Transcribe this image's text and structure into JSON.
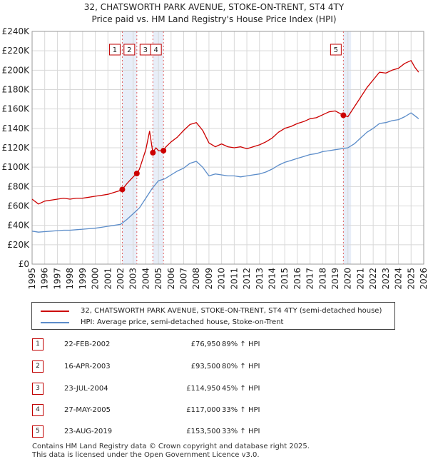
{
  "chart_data": {
    "type": "line",
    "title": "32, CHATSWORTH PARK AVENUE, STOKE-ON-TRENT, ST4 4TY",
    "subtitle": "Price paid vs. HM Land Registry's House Price Index (HPI)",
    "xlabel": "",
    "ylabel": "",
    "xlim": [
      1995,
      2026
    ],
    "ylim": [
      0,
      240000
    ],
    "x_ticks": [
      1995,
      1996,
      1997,
      1998,
      1999,
      2000,
      2001,
      2002,
      2003,
      2004,
      2005,
      2006,
      2007,
      2008,
      2009,
      2010,
      2011,
      2012,
      2013,
      2014,
      2015,
      2016,
      2017,
      2018,
      2019,
      2020,
      2021,
      2022,
      2023,
      2024,
      2025,
      2026
    ],
    "y_ticks": [
      {
        "value": 0,
        "label": "£0"
      },
      {
        "value": 20000,
        "label": "£20K"
      },
      {
        "value": 40000,
        "label": "£40K"
      },
      {
        "value": 60000,
        "label": "£60K"
      },
      {
        "value": 80000,
        "label": "£80K"
      },
      {
        "value": 100000,
        "label": "£100K"
      },
      {
        "value": 120000,
        "label": "£120K"
      },
      {
        "value": 140000,
        "label": "£140K"
      },
      {
        "value": 160000,
        "label": "£160K"
      },
      {
        "value": 180000,
        "label": "£180K"
      },
      {
        "value": 200000,
        "label": "£200K"
      },
      {
        "value": 220000,
        "label": "£220K"
      },
      {
        "value": 240000,
        "label": "£240K"
      }
    ],
    "grid": true,
    "series": [
      {
        "name": "32, CHATSWORTH PARK AVENUE, STOKE-ON-TRENT, ST4 4TY (semi-detached house)",
        "color": "#cc0000",
        "x": [
          1995.0,
          1995.5,
          1996.0,
          1996.5,
          1997.0,
          1997.5,
          1998.0,
          1998.5,
          1999.0,
          1999.5,
          2000.0,
          2000.5,
          2001.0,
          2001.5,
          2002.0,
          2002.14,
          2002.5,
          2003.0,
          2003.29,
          2003.5,
          2004.0,
          2004.3,
          2004.56,
          2004.8,
          2005.0,
          2005.4,
          2005.6,
          2006.0,
          2006.5,
          2007.0,
          2007.5,
          2008.0,
          2008.5,
          2009.0,
          2009.5,
          2010.0,
          2010.5,
          2011.0,
          2011.5,
          2012.0,
          2012.5,
          2013.0,
          2013.5,
          2014.0,
          2014.5,
          2015.0,
          2015.5,
          2016.0,
          2016.5,
          2017.0,
          2017.5,
          2018.0,
          2018.5,
          2019.0,
          2019.64,
          2020.0,
          2020.5,
          2021.0,
          2021.5,
          2022.0,
          2022.5,
          2023.0,
          2023.5,
          2024.0,
          2024.5,
          2025.0,
          2025.3,
          2025.6
        ],
        "values": [
          67000,
          62000,
          65000,
          66000,
          67000,
          68000,
          67000,
          68000,
          68000,
          69000,
          70000,
          71000,
          72000,
          74000,
          76000,
          76950,
          83000,
          90000,
          93500,
          98000,
          118000,
          137000,
          114950,
          120000,
          117000,
          117000,
          121000,
          126000,
          131000,
          138000,
          144000,
          146000,
          138000,
          125000,
          121000,
          124000,
          121000,
          120000,
          121000,
          119000,
          121000,
          123000,
          126000,
          130000,
          136000,
          140000,
          142000,
          145000,
          147000,
          150000,
          151000,
          154000,
          157000,
          158000,
          153500,
          152000,
          162000,
          172000,
          182000,
          190000,
          198000,
          197000,
          200000,
          202000,
          207000,
          210000,
          203000,
          198000
        ]
      },
      {
        "name": "HPI: Average price, semi-detached house, Stoke-on-Trent",
        "color": "#5b8cc9",
        "x": [
          1995.0,
          1995.5,
          1996.0,
          1996.5,
          1997.0,
          1997.5,
          1998.0,
          1998.5,
          1999.0,
          1999.5,
          2000.0,
          2000.5,
          2001.0,
          2001.5,
          2002.0,
          2002.5,
          2003.0,
          2003.5,
          2004.0,
          2004.5,
          2005.0,
          2005.5,
          2006.0,
          2006.5,
          2007.0,
          2007.5,
          2008.0,
          2008.5,
          2009.0,
          2009.5,
          2010.0,
          2010.5,
          2011.0,
          2011.5,
          2012.0,
          2012.5,
          2013.0,
          2013.5,
          2014.0,
          2014.5,
          2015.0,
          2015.5,
          2016.0,
          2016.5,
          2017.0,
          2017.5,
          2018.0,
          2018.5,
          2019.0,
          2019.5,
          2020.0,
          2020.5,
          2021.0,
          2021.5,
          2022.0,
          2022.5,
          2023.0,
          2023.5,
          2024.0,
          2024.5,
          2025.0,
          2025.3,
          2025.6
        ],
        "values": [
          34000,
          33000,
          33500,
          34000,
          34500,
          35000,
          35000,
          35500,
          36000,
          36500,
          37000,
          38000,
          39000,
          40000,
          41000,
          46000,
          52000,
          58000,
          68000,
          78000,
          86000,
          88000,
          92000,
          96000,
          99000,
          104000,
          106000,
          100000,
          91000,
          93000,
          92000,
          91000,
          91000,
          90000,
          91000,
          92000,
          93000,
          95000,
          98000,
          102000,
          105000,
          107000,
          109000,
          111000,
          113000,
          114000,
          116000,
          117000,
          118000,
          119000,
          120000,
          124000,
          130000,
          136000,
          140000,
          145000,
          146000,
          148000,
          149000,
          152000,
          156000,
          153000,
          150000
        ]
      }
    ],
    "markers": [
      {
        "label": "1",
        "x": 2002.14,
        "value": 76950
      },
      {
        "label": "2",
        "x": 2003.29,
        "value": 93500
      },
      {
        "label": "3",
        "x": 2004.56,
        "value": 114950
      },
      {
        "label": "4",
        "x": 2005.4,
        "value": 117000
      },
      {
        "label": "5",
        "x": 2019.64,
        "value": 153500
      }
    ],
    "legend": [
      "32, CHATSWORTH PARK AVENUE, STOKE-ON-TRENT, ST4 4TY (semi-detached house)",
      "HPI: Average price, semi-detached house, Stoke-on-Trent"
    ],
    "legend_position": "bottom"
  },
  "sales": [
    {
      "num": "1",
      "date": "22-FEB-2002",
      "price": "£76,950",
      "hpi": "89% ↑ HPI"
    },
    {
      "num": "2",
      "date": "16-APR-2003",
      "price": "£93,500",
      "hpi": "80% ↑ HPI"
    },
    {
      "num": "3",
      "date": "23-JUL-2004",
      "price": "£114,950",
      "hpi": "45% ↑ HPI"
    },
    {
      "num": "4",
      "date": "27-MAY-2005",
      "price": "£117,000",
      "hpi": "33% ↑ HPI"
    },
    {
      "num": "5",
      "date": "23-AUG-2019",
      "price": "£153,500",
      "hpi": "33% ↑ HPI"
    }
  ],
  "footer": {
    "line1": "Contains HM Land Registry data © Crown copyright and database right 2025.",
    "line2": "This data is licensed under the Open Government Licence v3.0."
  },
  "colors": {
    "property": "#cc0000",
    "hpi": "#5b8cc9",
    "shade": "#e8eef8",
    "grid": "#d8d8d8"
  }
}
